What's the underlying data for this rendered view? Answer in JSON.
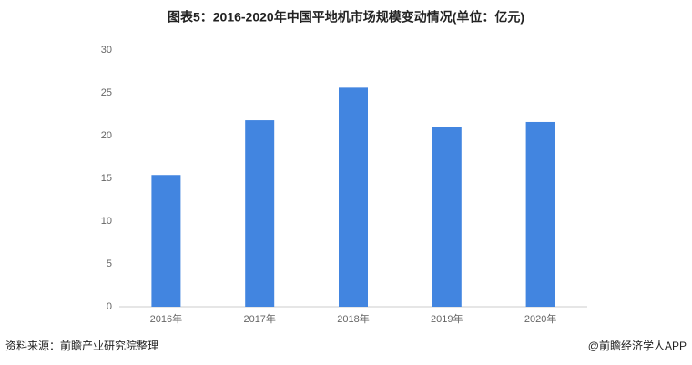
{
  "chart_data": {
    "type": "bar",
    "title": "图表5：2016-2020年中国平地机市场规模变动情况(单位：亿元)",
    "categories": [
      "2016年",
      "2017年",
      "2018年",
      "2019年",
      "2020年"
    ],
    "values": [
      15.4,
      21.8,
      25.6,
      21.0,
      21.6
    ],
    "color": "#4285e0",
    "ylim": [
      0,
      30
    ],
    "yticks": [
      0,
      5,
      10,
      15,
      20,
      25,
      30
    ],
    "grid": false,
    "source": "资料来源：前瞻产业研究院整理",
    "credit": "@前瞻经济学人APP"
  }
}
